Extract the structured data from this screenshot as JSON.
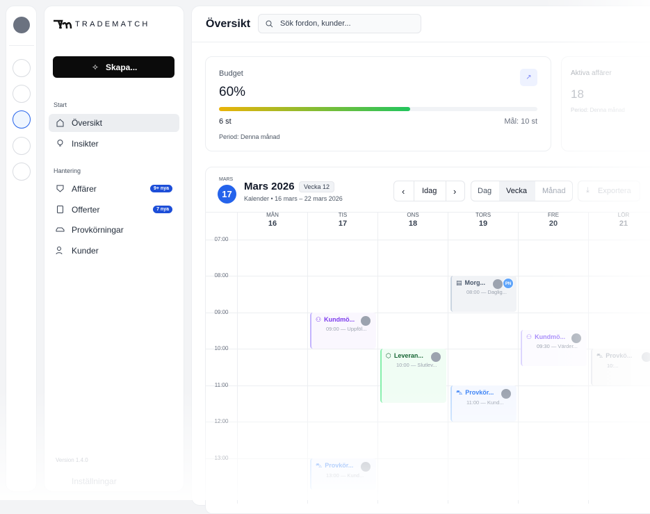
{
  "sidebar": {
    "logo": "TRADEMATCH",
    "create_button": "Skapa...",
    "sections": [
      {
        "title": "Start",
        "items": [
          {
            "label": "Översikt"
          },
          {
            "label": "Insikter"
          }
        ]
      },
      {
        "title": "Hantering",
        "items": [
          {
            "label": "Affärer",
            "badge": "9+ nya"
          },
          {
            "label": "Offerter",
            "badge": "7 nya"
          },
          {
            "label": "Provkörningar"
          },
          {
            "label": "Kunder"
          }
        ]
      }
    ],
    "version": "Version 1.4.0",
    "settings": "Inställningar"
  },
  "header": {
    "title": "Översikt",
    "search_placeholder": "Sök fordon, kunder..."
  },
  "cards": [
    {
      "title": "Budget",
      "value": "60%",
      "progress": 60,
      "count": "6 st",
      "goal": "Mål: 10 st",
      "period": "Period: Denna månad"
    },
    {
      "title": "Aktiva affärer",
      "value": "18",
      "period": "Period: Denna månad"
    }
  ],
  "calendar": {
    "badge_month": "MARS",
    "badge_day": "17",
    "title": "Mars 2026",
    "week": "Vecka 12",
    "subtitle": "Kalender • 16 mars – 22 mars 2026",
    "today": "Idag",
    "views": [
      "Dag",
      "Vecka",
      "Månad"
    ],
    "export": "Exportera",
    "days": [
      {
        "name": "MÅN",
        "date": "16"
      },
      {
        "name": "TIS",
        "date": "17"
      },
      {
        "name": "ONS",
        "date": "18"
      },
      {
        "name": "TORS",
        "date": "19"
      },
      {
        "name": "FRE",
        "date": "20"
      },
      {
        "name": "LÖR",
        "date": "21"
      }
    ],
    "times": [
      "07:00",
      "08:00",
      "09:00",
      "10:00",
      "11:00",
      "12:00",
      "13:00"
    ],
    "events": [
      {
        "title": "Morg...",
        "detail": "08:00 — Daglig...",
        "avatar": "PN"
      },
      {
        "title": "Kundmö...",
        "detail": "09:00 — Uppföl..."
      },
      {
        "title": "Leveran...",
        "detail": "10:00 — Slutlev..."
      },
      {
        "title": "Kundmö...",
        "detail": "09:30 — Värder..."
      },
      {
        "title": "Provkör...",
        "detail": "11:00 — Kund..."
      },
      {
        "title": "Provkö...",
        "detail": "10:..."
      },
      {
        "title": "Provkör...",
        "detail": "13:00 — Kund..."
      }
    ]
  }
}
